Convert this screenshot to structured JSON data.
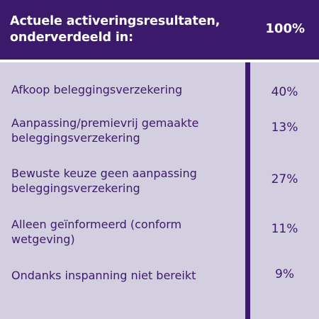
{
  "header": {
    "title": "Actuele activeringsresultaten, onderverdeeld in:",
    "total": "100%"
  },
  "colors": {
    "header_bg": "#3c1a6b",
    "body_bg": "#d3cfe0",
    "text": "#3c1a6b"
  },
  "chart_data": {
    "type": "table",
    "title": "Actuele activeringsresultaten, onderverdeeld in:",
    "total_label": "100%",
    "categories": [
      "Afkoop beleggingsverzekering",
      "Aanpassing/premievrij gemaakte beleggingsverzekering",
      "Bewuste keuze geen aanpassing beleggingsverzekering",
      "Alleen geïnformeerd (conform wetgeving)",
      "Ondanks inspanning niet bereikt"
    ],
    "values": [
      40,
      13,
      27,
      11,
      9
    ],
    "value_labels": [
      "40%",
      "13%",
      "27%",
      "11%",
      "9%"
    ]
  }
}
